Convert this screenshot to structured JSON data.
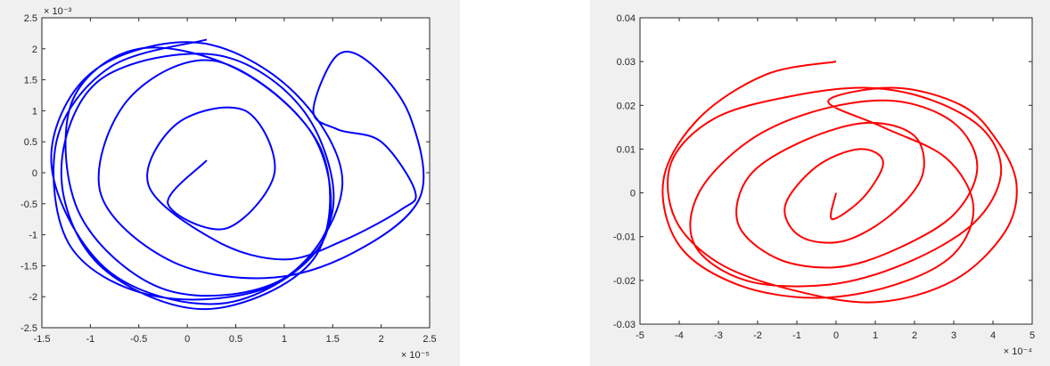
{
  "chart_data": [
    {
      "type": "line",
      "xlabel": "",
      "ylabel": "",
      "xlim": [
        -1.5,
        2.5
      ],
      "ylim": [
        -2.5,
        2.5
      ],
      "xticks": [
        "-1.5",
        "-1",
        "-0.5",
        "0",
        "0.5",
        "1",
        "1.5",
        "2",
        "2.5"
      ],
      "yticks": [
        "-2.5",
        "-2",
        "-1.5",
        "-1",
        "-0.5",
        "0",
        "0.5",
        "1",
        "1.5",
        "2",
        "2.5"
      ],
      "x_exponent": "× 10⁻⁵",
      "y_exponent": "× 10⁻³",
      "grid": false,
      "series": [
        {
          "color": "#0000ff",
          "x": [
            0.2,
            -0.8,
            -1.35,
            -1.2,
            -0.3,
            0.9,
            1.5,
            1.2,
            0.3,
            -0.9,
            -1.3,
            -0.9,
            0.2,
            1.3,
            1.4,
            0.6,
            -0.5,
            -1.2,
            -1.1,
            -0.2,
            1.0,
            1.6,
            1.1,
            0.1,
            -1.0,
            -1.4,
            -0.8,
            0.4,
            1.4,
            1.3,
            0.3,
            -0.6,
            -0.9,
            -0.2,
            0.8,
            1.7,
            2.4,
            2.3,
            1.9,
            1.55,
            1.3,
            1.55,
            2.0,
            2.35,
            2.2,
            1.6,
            1.0,
            0.3,
            -0.4,
            -0.1,
            0.6,
            0.9,
            0.4,
            -0.2,
            0.2
          ],
          "y": [
            2.15,
            1.7,
            0.5,
            -1.2,
            -2.0,
            -1.8,
            -0.6,
            1.0,
            1.9,
            1.5,
            0.0,
            -1.5,
            -2.2,
            -1.4,
            0.3,
            1.6,
            2.0,
            1.1,
            -0.7,
            -1.9,
            -1.7,
            -0.2,
            1.3,
            2.1,
            1.6,
            0.1,
            -1.6,
            -2.1,
            -1.1,
            0.6,
            1.8,
            1.2,
            -0.3,
            -1.4,
            -1.7,
            -1.3,
            -0.4,
            0.9,
            1.75,
            1.9,
            1.0,
            0.7,
            0.5,
            -0.3,
            -0.6,
            -1.1,
            -1.4,
            -1.1,
            -0.2,
            0.8,
            1.0,
            0.0,
            -0.9,
            -0.5,
            0.2
          ]
        }
      ]
    },
    {
      "type": "line",
      "xlabel": "",
      "ylabel": "",
      "xlim": [
        -5,
        5
      ],
      "ylim": [
        -0.03,
        0.04
      ],
      "xticks": [
        "-5",
        "-4",
        "-3",
        "-2",
        "-1",
        "0",
        "1",
        "2",
        "3",
        "4",
        "5"
      ],
      "yticks": [
        "-0.03",
        "-0.02",
        "-0.01",
        "0",
        "0.01",
        "0.02",
        "0.03",
        "0.04"
      ],
      "x_exponent": "× 10⁻⁴",
      "y_exponent": "",
      "grid": false,
      "series": [
        {
          "color": "#ff0000",
          "x": [
            0.0,
            -1.8,
            -3.5,
            -4.4,
            -4.0,
            -2.5,
            -0.5,
            1.5,
            3.0,
            3.5,
            2.8,
            1.2,
            -0.2,
            1.5,
            3.2,
            4.1,
            4.6,
            4.3,
            3.0,
            1.0,
            -1.2,
            -3.0,
            -4.1,
            -4.2,
            -3.1,
            -1.2,
            0.8,
            2.5,
            3.8,
            4.2,
            3.5,
            1.8,
            -0.2,
            -2.3,
            -3.6,
            -3.5,
            -2.2,
            -0.4,
            1.5,
            3.0,
            3.6,
            3.0,
            1.5,
            0.0,
            -1.5,
            -2.5,
            -2.2,
            -0.8,
            0.8,
            2.0,
            2.2,
            1.4,
            0.2,
            -0.9,
            -1.3,
            -0.5,
            0.6,
            1.2,
            0.7,
            -0.1,
            0.0
          ],
          "y": [
            0.03,
            0.027,
            0.017,
            0.003,
            -0.012,
            -0.021,
            -0.024,
            -0.021,
            -0.014,
            -0.003,
            0.008,
            0.015,
            0.021,
            0.024,
            0.02,
            0.012,
            0.002,
            -0.009,
            -0.02,
            -0.025,
            -0.022,
            -0.016,
            -0.006,
            0.007,
            0.017,
            0.022,
            0.024,
            0.021,
            0.014,
            0.004,
            -0.007,
            -0.016,
            -0.021,
            -0.02,
            -0.012,
            0.0,
            0.012,
            0.019,
            0.021,
            0.016,
            0.006,
            -0.005,
            -0.013,
            -0.017,
            -0.015,
            -0.007,
            0.004,
            0.012,
            0.016,
            0.013,
            0.004,
            -0.005,
            -0.011,
            -0.01,
            -0.003,
            0.006,
            0.01,
            0.007,
            -0.001,
            -0.006,
            0.0
          ]
        }
      ]
    }
  ]
}
